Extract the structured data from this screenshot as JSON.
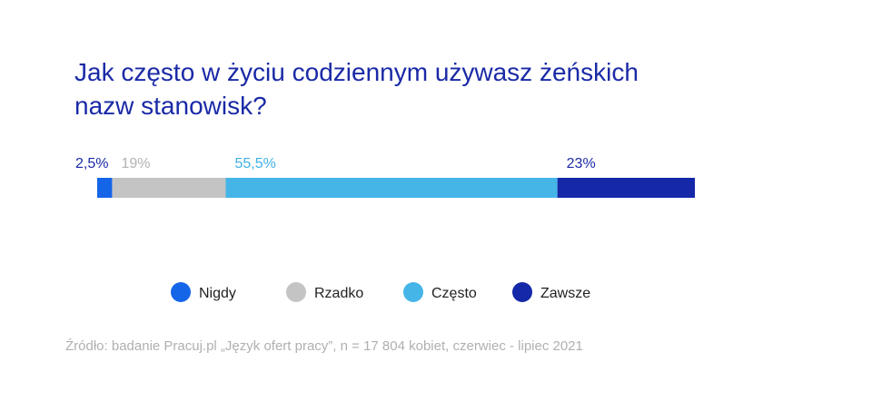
{
  "chart_data": {
    "type": "bar",
    "orientation": "horizontal-stacked",
    "title_lines": [
      "Jak często w życiu codziennym używasz żeńskich",
      "nazw stanowisk?"
    ],
    "categories": [
      "Nigdy",
      "Rzadko",
      "Często",
      "Zawsze"
    ],
    "values": [
      2.5,
      19,
      55.5,
      23
    ],
    "value_labels": [
      "2,5%",
      "19%",
      "55,5%",
      "23%"
    ],
    "unit": "%",
    "colors": [
      "#1565e8",
      "#c4c4c4",
      "#45b5e8",
      "#1428a8"
    ],
    "label_colors": [
      "#1a2aa6",
      "#b3b3b3",
      "#3fb0e6",
      "#1a2aa6"
    ],
    "legend_position": "bottom",
    "grid": false,
    "source": "Źródło: badanie Pracuj.pl „Język ofert pracy”, n = 17 804 kobiet, czerwiec - lipiec 2021"
  }
}
